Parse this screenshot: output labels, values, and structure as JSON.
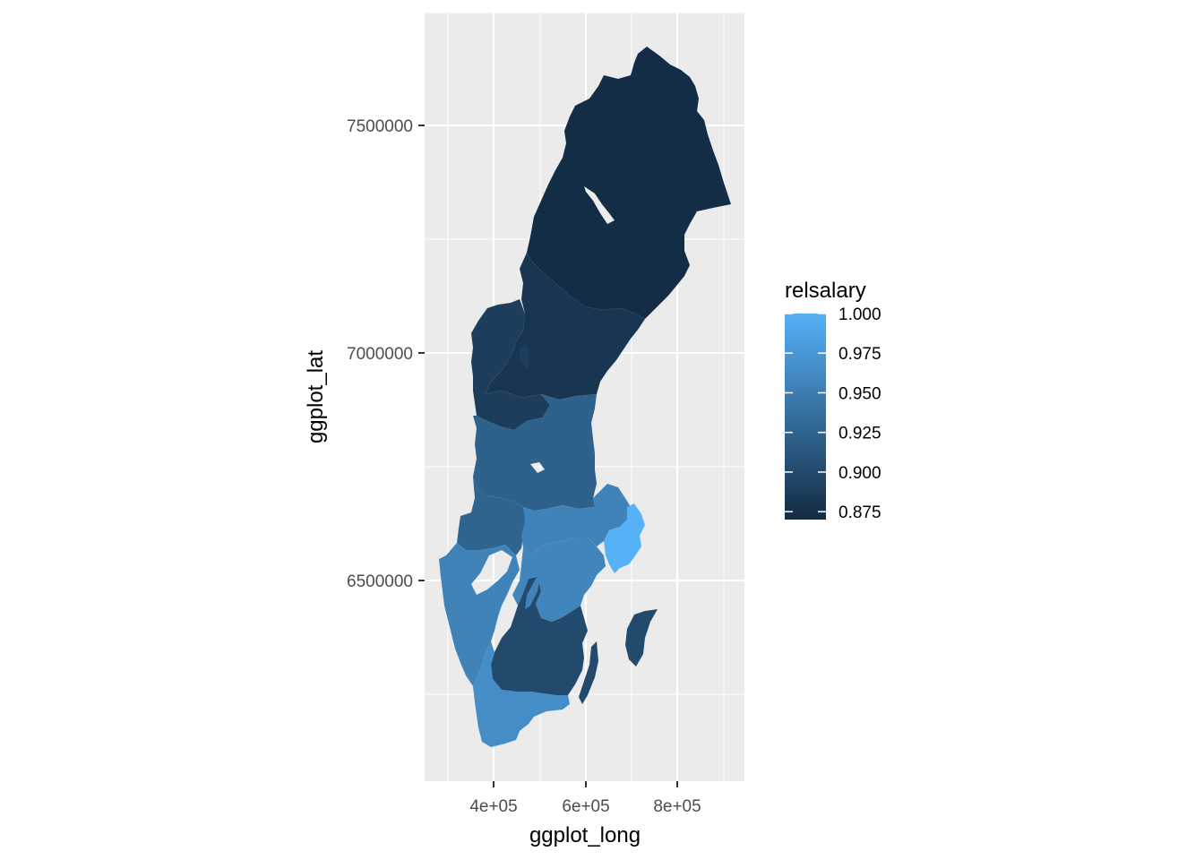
{
  "chart_data": {
    "type": "choropleth",
    "title": "",
    "xlabel": "ggplot_long",
    "ylabel": "ggplot_lat",
    "x_ticks": [
      {
        "value": 400000,
        "label": "4e+05"
      },
      {
        "value": 600000,
        "label": "6e+05"
      },
      {
        "value": 800000,
        "label": "8e+05"
      }
    ],
    "y_ticks": [
      {
        "value": 6500000,
        "label": "6500000"
      },
      {
        "value": 7000000,
        "label": "7000000"
      },
      {
        "value": 7500000,
        "label": "7500000"
      }
    ],
    "xlim": [
      250000,
      1000000
    ],
    "ylim": [
      6100000,
      7760000
    ],
    "grid": true,
    "legend": {
      "title": "relsalary",
      "position": "right",
      "range": [
        0.87,
        1.0
      ],
      "ticks": [
        {
          "value": 1.0,
          "label": "1.000"
        },
        {
          "value": 0.975,
          "label": "0.975"
        },
        {
          "value": 0.95,
          "label": "0.950"
        },
        {
          "value": 0.925,
          "label": "0.925"
        },
        {
          "value": 0.9,
          "label": "0.900"
        },
        {
          "value": 0.875,
          "label": "0.875"
        }
      ],
      "color_low": "#132B43",
      "color_high": "#56B1F7"
    },
    "regions": [
      {
        "relsalary": 0.872
      },
      {
        "relsalary": 0.88
      },
      {
        "relsalary": 0.888
      },
      {
        "relsalary": 0.922
      },
      {
        "relsalary": 0.925
      },
      {
        "relsalary": 0.955
      },
      {
        "relsalary": 0.958
      },
      {
        "relsalary": 1.0
      },
      {
        "relsalary": 0.9
      },
      {
        "relsalary": 0.955
      },
      {
        "relsalary": 0.965
      },
      {
        "relsalary": 0.905
      },
      {
        "relsalary": 0.905
      }
    ]
  }
}
